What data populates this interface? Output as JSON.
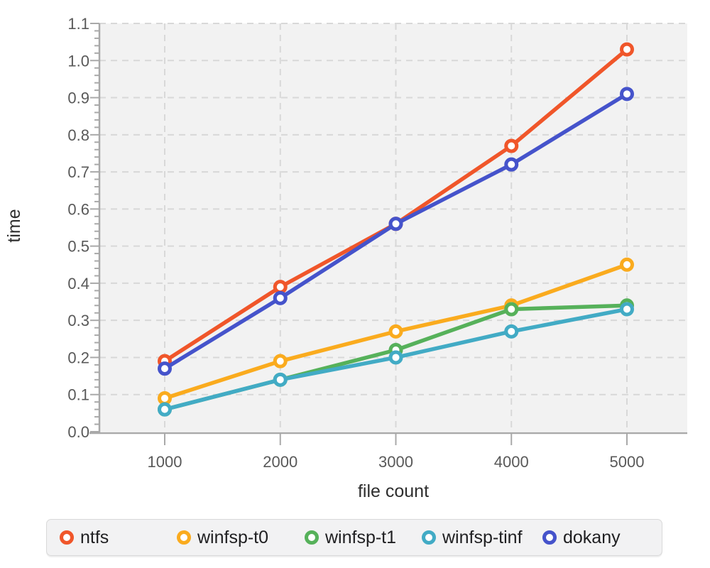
{
  "figure": {
    "plot_bg": "#f2f2f2",
    "grid_color": "#d8d8d8",
    "axis_color": "#a9a9a9",
    "tick_label_color": "#595959",
    "axis_title_color": "#2e2e2e"
  },
  "chart_data": {
    "type": "line",
    "title": "",
    "xlabel": "file count",
    "ylabel": "time",
    "x": [
      1000,
      2000,
      3000,
      4000,
      5000
    ],
    "xticklabels": [
      "1000",
      "2000",
      "3000",
      "4000",
      "5000"
    ],
    "yticklabels": [
      "0.0",
      "0.1",
      "0.2",
      "0.3",
      "0.4",
      "0.5",
      "0.6",
      "0.7",
      "0.8",
      "0.9",
      "1.0",
      "1.1"
    ],
    "ylim": [
      0,
      1.1
    ],
    "ytick_step": 0.1,
    "y_minor_tick_step": 0.02,
    "grid": "dashed",
    "marker": "open-circle",
    "legend_position": "bottom",
    "series": [
      {
        "name": "ntfs",
        "color": "#f0562a",
        "values": [
          0.19,
          0.39,
          0.56,
          0.77,
          1.03
        ]
      },
      {
        "name": "winfsp-t0",
        "color": "#faab1e",
        "values": [
          0.09,
          0.19,
          0.27,
          0.34,
          0.45
        ]
      },
      {
        "name": "winfsp-t1",
        "color": "#56b15a",
        "values": [
          0.06,
          0.14,
          0.22,
          0.33,
          0.34
        ]
      },
      {
        "name": "winfsp-tinf",
        "color": "#42abc5",
        "values": [
          0.06,
          0.14,
          0.2,
          0.27,
          0.33
        ]
      },
      {
        "name": "dokany",
        "color": "#4553cb",
        "values": [
          0.17,
          0.36,
          0.56,
          0.72,
          0.91
        ]
      }
    ]
  }
}
